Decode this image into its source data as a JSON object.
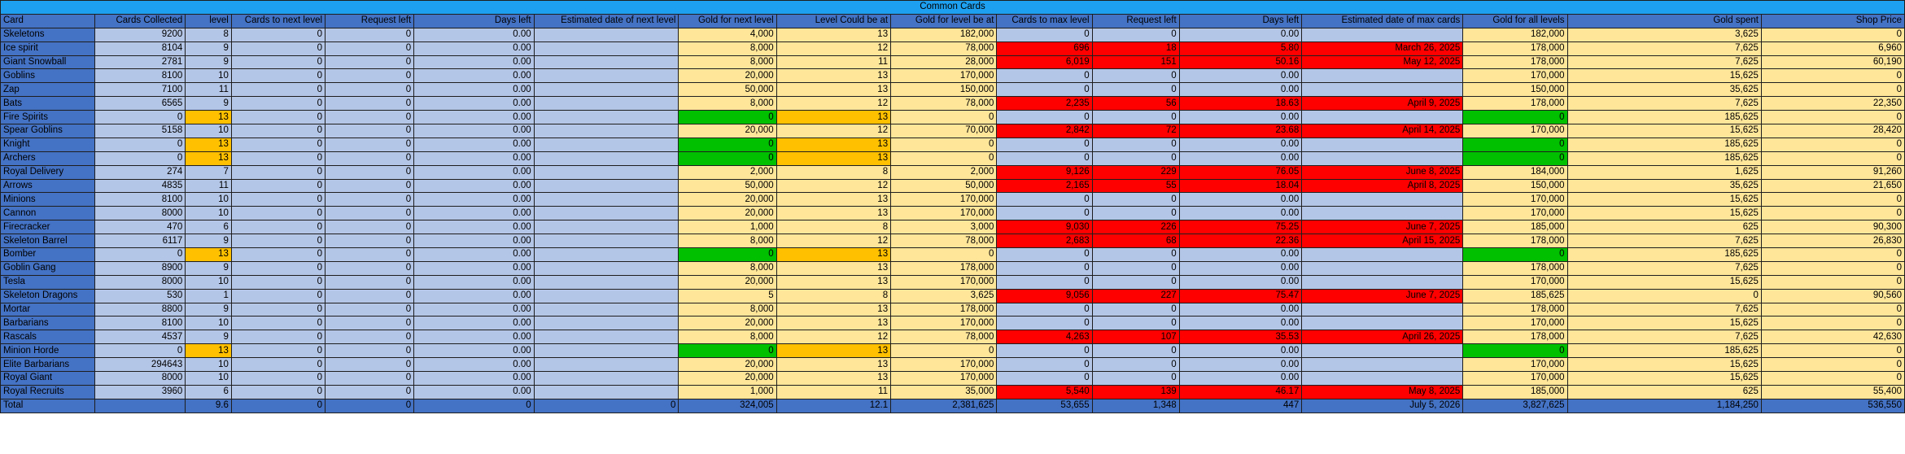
{
  "sheet_title": "Common Cards",
  "headers": [
    "Card",
    "Cards Collected",
    "level",
    "Cards to next level",
    "Request left",
    "Days left",
    "Estimated date of next level",
    "Gold for next level",
    "Level Could be at",
    "Gold for level be at",
    "Cards to max level",
    "Request left",
    "Days left",
    "Estimated  date of max cards",
    "Gold for all levels",
    "Gold spent",
    "Shop Price"
  ],
  "header_centered": [
    15,
    16
  ],
  "column_palette": [
    "cs",
    "b",
    "b",
    "b",
    "b",
    "b",
    "b",
    "y",
    "y",
    "y",
    "b",
    "b",
    "b",
    "b",
    "y",
    "y",
    "y"
  ],
  "rows": [
    {
      "cells": [
        "Skeletons",
        "9200",
        "8",
        "0",
        "0",
        "0.00",
        "",
        "4,000",
        "13",
        "182,000",
        "0",
        "0",
        "0.00",
        "",
        "182,000",
        "3,625",
        "0"
      ]
    },
    {
      "cells": [
        "Ice spirit",
        "8104",
        "9",
        "0",
        "0",
        "0.00",
        "",
        "8,000",
        "12",
        "78,000",
        "696",
        "18",
        "5.80",
        "March 26, 2025",
        "178,000",
        "7,625",
        "6,960"
      ],
      "red": true
    },
    {
      "cells": [
        "Giant Snowball",
        "2781",
        "9",
        "0",
        "0",
        "0.00",
        "",
        "8,000",
        "11",
        "28,000",
        "6,019",
        "151",
        "50.16",
        "May 12, 2025",
        "178,000",
        "7,625",
        "60,190"
      ],
      "red": true
    },
    {
      "cells": [
        "Goblins",
        "8100",
        "10",
        "0",
        "0",
        "0.00",
        "",
        "20,000",
        "13",
        "170,000",
        "0",
        "0",
        "0.00",
        "",
        "170,000",
        "15,625",
        "0"
      ]
    },
    {
      "cells": [
        "Zap",
        "7100",
        "11",
        "0",
        "0",
        "0.00",
        "",
        "50,000",
        "13",
        "150,000",
        "0",
        "0",
        "0.00",
        "",
        "150,000",
        "35,625",
        "0"
      ]
    },
    {
      "cells": [
        "Bats",
        "6565",
        "9",
        "0",
        "0",
        "0.00",
        "",
        "8,000",
        "12",
        "78,000",
        "2,235",
        "56",
        "18.63",
        "April 9, 2025",
        "178,000",
        "7,625",
        "22,350"
      ],
      "red": true
    },
    {
      "cells": [
        "Fire Spirits",
        "0",
        "13",
        "0",
        "0",
        "0.00",
        "",
        "0",
        "13",
        "0",
        "0",
        "0",
        "0.00",
        "",
        "0",
        "185,625",
        "0"
      ],
      "maxed": true
    },
    {
      "cells": [
        "Spear Goblins",
        "5158",
        "10",
        "0",
        "0",
        "0.00",
        "",
        "20,000",
        "12",
        "70,000",
        "2,842",
        "72",
        "23.68",
        "April 14, 2025",
        "170,000",
        "15,625",
        "28,420"
      ],
      "red": true
    },
    {
      "cells": [
        "Knight",
        "0",
        "13",
        "0",
        "0",
        "0.00",
        "",
        "0",
        "13",
        "0",
        "0",
        "0",
        "0.00",
        "",
        "0",
        "185,625",
        "0"
      ],
      "maxed": true
    },
    {
      "cells": [
        "Archers",
        "0",
        "13",
        "0",
        "0",
        "0.00",
        "",
        "0",
        "13",
        "0",
        "0",
        "0",
        "0.00",
        "",
        "0",
        "185,625",
        "0"
      ],
      "maxed": true
    },
    {
      "cells": [
        "Royal Delivery",
        "274",
        "7",
        "0",
        "0",
        "0.00",
        "",
        "2,000",
        "8",
        "2,000",
        "9,126",
        "229",
        "76.05",
        "June 8, 2025",
        "184,000",
        "1,625",
        "91,260"
      ],
      "red": true
    },
    {
      "cells": [
        "Arrows",
        "4835",
        "11",
        "0",
        "0",
        "0.00",
        "",
        "50,000",
        "12",
        "50,000",
        "2,165",
        "55",
        "18.04",
        "April 8, 2025",
        "150,000",
        "35,625",
        "21,650"
      ],
      "red": true
    },
    {
      "cells": [
        "Minions",
        "8100",
        "10",
        "0",
        "0",
        "0.00",
        "",
        "20,000",
        "13",
        "170,000",
        "0",
        "0",
        "0.00",
        "",
        "170,000",
        "15,625",
        "0"
      ]
    },
    {
      "cells": [
        "Cannon",
        "8000",
        "10",
        "0",
        "0",
        "0.00",
        "",
        "20,000",
        "13",
        "170,000",
        "0",
        "0",
        "0.00",
        "",
        "170,000",
        "15,625",
        "0"
      ]
    },
    {
      "cells": [
        "Firecracker",
        "470",
        "6",
        "0",
        "0",
        "0.00",
        "",
        "1,000",
        "8",
        "3,000",
        "9,030",
        "226",
        "75.25",
        "June 7, 2025",
        "185,000",
        "625",
        "90,300"
      ],
      "red": true
    },
    {
      "cells": [
        "Skeleton Barrel",
        "6117",
        "9",
        "0",
        "0",
        "0.00",
        "",
        "8,000",
        "12",
        "78,000",
        "2,683",
        "68",
        "22.36",
        "April 15, 2025",
        "178,000",
        "7,625",
        "26,830"
      ],
      "red": true
    },
    {
      "cells": [
        "Bomber",
        "0",
        "13",
        "0",
        "0",
        "0.00",
        "",
        "0",
        "13",
        "0",
        "0",
        "0",
        "0.00",
        "",
        "0",
        "185,625",
        "0"
      ],
      "maxed": true
    },
    {
      "cells": [
        "Goblin Gang",
        "8900",
        "9",
        "0",
        "0",
        "0.00",
        "",
        "8,000",
        "13",
        "178,000",
        "0",
        "0",
        "0.00",
        "",
        "178,000",
        "7,625",
        "0"
      ]
    },
    {
      "cells": [
        "Tesla",
        "8000",
        "10",
        "0",
        "0",
        "0.00",
        "",
        "20,000",
        "13",
        "170,000",
        "0",
        "0",
        "0.00",
        "",
        "170,000",
        "15,625",
        "0"
      ]
    },
    {
      "cells": [
        "Skeleton Dragons",
        "530",
        "1",
        "0",
        "0",
        "0.00",
        "",
        "5",
        "8",
        "3,625",
        "9,056",
        "227",
        "75.47",
        "June 7, 2025",
        "185,625",
        "0",
        "90,560"
      ],
      "red": true
    },
    {
      "cells": [
        "Mortar",
        "8800",
        "9",
        "0",
        "0",
        "0.00",
        "",
        "8,000",
        "13",
        "178,000",
        "0",
        "0",
        "0.00",
        "",
        "178,000",
        "7,625",
        "0"
      ]
    },
    {
      "cells": [
        "Barbarians",
        "8100",
        "10",
        "0",
        "0",
        "0.00",
        "",
        "20,000",
        "13",
        "170,000",
        "0",
        "0",
        "0.00",
        "",
        "170,000",
        "15,625",
        "0"
      ]
    },
    {
      "cells": [
        "Rascals",
        "4537",
        "9",
        "0",
        "0",
        "0.00",
        "",
        "8,000",
        "12",
        "78,000",
        "4,263",
        "107",
        "35.53",
        "April 26, 2025",
        "178,000",
        "7,625",
        "42,630"
      ],
      "red": true
    },
    {
      "cells": [
        "Minion Horde",
        "0",
        "13",
        "0",
        "0",
        "0.00",
        "",
        "0",
        "13",
        "0",
        "0",
        "0",
        "0.00",
        "",
        "0",
        "185,625",
        "0"
      ],
      "maxed": true
    },
    {
      "cells": [
        "Elite Barbarians",
        "294643",
        "10",
        "0",
        "0",
        "0.00",
        "",
        "20,000",
        "13",
        "170,000",
        "0",
        "0",
        "0.00",
        "",
        "170,000",
        "15,625",
        "0"
      ]
    },
    {
      "cells": [
        "Royal Giant",
        "8000",
        "10",
        "0",
        "0",
        "0.00",
        "",
        "20,000",
        "13",
        "170,000",
        "0",
        "0",
        "0.00",
        "",
        "170,000",
        "15,625",
        "0"
      ]
    },
    {
      "cells": [
        "Royal Recruits",
        "3960",
        "6",
        "0",
        "0",
        "0.00",
        "",
        "1,000",
        "11",
        "35,000",
        "5,540",
        "139",
        "46.17",
        "May 8, 2025",
        "185,000",
        "625",
        "55,400"
      ],
      "red": true
    }
  ],
  "total_row": [
    "Total",
    "",
    "9.6",
    "0",
    "0",
    "0",
    "0",
    "324,005",
    "12.1",
    "2,381,625",
    "53,655",
    "1,348",
    "447",
    "July 5, 2026",
    "3,827,625",
    "1,184,250",
    "536,550"
  ]
}
